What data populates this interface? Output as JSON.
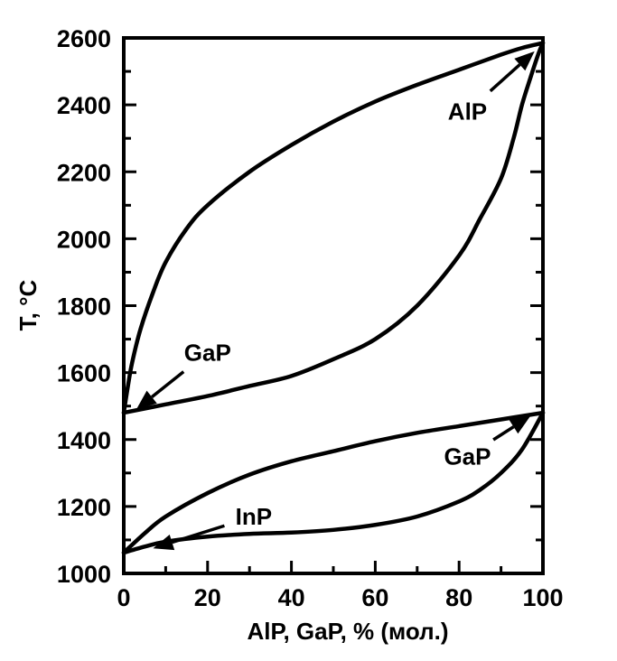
{
  "chart_data": {
    "type": "line",
    "title": "",
    "xlabel": "AlP, GaP, % (мол.)",
    "ylabel": "T, °C",
    "xlim": [
      0,
      100
    ],
    "ylim": [
      1000,
      2600
    ],
    "x_ticks": [
      0,
      20,
      40,
      60,
      80,
      100
    ],
    "y_ticks": [
      1000,
      1200,
      1400,
      1600,
      1800,
      2000,
      2200,
      2400,
      2600
    ],
    "grid": false,
    "series": [
      {
        "x": [
          0,
          1,
          2,
          4,
          7,
          10,
          15,
          20,
          30,
          40,
          50,
          60,
          70,
          80,
          90,
          95,
          100
        ],
        "y": [
          1480,
          1560,
          1630,
          1730,
          1840,
          1930,
          2030,
          2100,
          2200,
          2280,
          2350,
          2410,
          2460,
          2505,
          2550,
          2570,
          2585
        ]
      },
      {
        "x": [
          0,
          10,
          20,
          30,
          40,
          50,
          60,
          70,
          80,
          85,
          90,
          93,
          95,
          97,
          99,
          100
        ],
        "y": [
          1480,
          1505,
          1530,
          1560,
          1590,
          1640,
          1700,
          1800,
          1950,
          2060,
          2180,
          2300,
          2400,
          2480,
          2555,
          2585
        ]
      },
      {
        "x": [
          0,
          5,
          10,
          20,
          30,
          40,
          50,
          60,
          70,
          80,
          90,
          100
        ],
        "y": [
          1062,
          1120,
          1170,
          1240,
          1295,
          1335,
          1365,
          1395,
          1420,
          1440,
          1460,
          1480
        ]
      },
      {
        "x": [
          0,
          5,
          10,
          20,
          30,
          40,
          50,
          60,
          70,
          80,
          85,
          90,
          95,
          100
        ],
        "y": [
          1062,
          1080,
          1095,
          1110,
          1118,
          1122,
          1130,
          1145,
          1170,
          1215,
          1250,
          1300,
          1370,
          1480
        ]
      }
    ],
    "annotations": [
      {
        "text": "AlP",
        "x": 82,
        "y": 2380,
        "arrow_to": [
          98,
          2560
        ]
      },
      {
        "text": "GaP",
        "x": 20,
        "y": 1660,
        "arrow_to": [
          3,
          1490
        ]
      },
      {
        "text": "GaP",
        "x": 82,
        "y": 1350,
        "arrow_to": [
          97,
          1470
        ]
      },
      {
        "text": "InP",
        "x": 31,
        "y": 1170,
        "arrow_to": [
          7,
          1075
        ]
      }
    ]
  }
}
